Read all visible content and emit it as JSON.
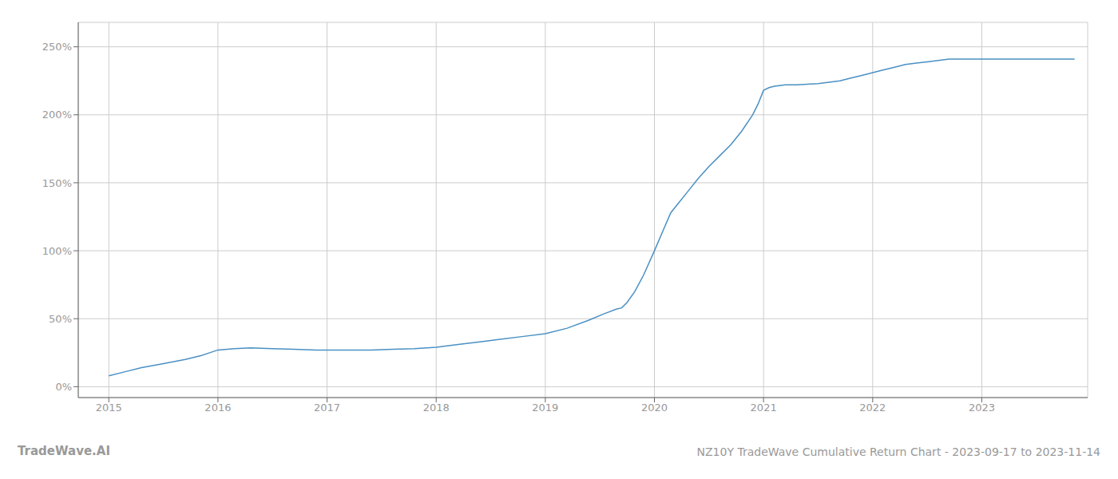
{
  "chart_data": {
    "type": "line",
    "title": "NZ10Y TradeWave Cumulative Return Chart - 2023-09-17 to 2023-11-14",
    "annotations": [
      "TradeWave.AI"
    ],
    "color": "#4a90c4",
    "grid": true,
    "x": [
      2015.0,
      2015.15,
      2015.3,
      2015.5,
      2015.7,
      2015.85,
      2016.0,
      2016.15,
      2016.3,
      2016.5,
      2016.7,
      2016.9,
      2017.0,
      2017.2,
      2017.4,
      2017.6,
      2017.8,
      2018.0,
      2018.2,
      2018.4,
      2018.6,
      2018.8,
      2019.0,
      2019.2,
      2019.4,
      2019.55,
      2019.65,
      2019.7,
      2019.75,
      2019.82,
      2019.9,
      2020.0,
      2020.08,
      2020.15,
      2020.22,
      2020.3,
      2020.4,
      2020.5,
      2020.6,
      2020.7,
      2020.8,
      2020.9,
      2020.95,
      2021.0,
      2021.05,
      2021.1,
      2021.2,
      2021.3,
      2021.4,
      2021.5,
      2021.6,
      2021.7,
      2021.8,
      2021.9,
      2022.0,
      2022.1,
      2022.2,
      2022.3,
      2022.4,
      2022.5,
      2022.6,
      2022.7,
      2022.75,
      2022.85,
      2023.0,
      2023.1,
      2023.2,
      2023.3,
      2023.4,
      2023.5,
      2023.6,
      2023.7,
      2023.85
    ],
    "values": [
      8,
      11,
      14,
      17,
      20,
      23,
      27,
      28,
      28.5,
      28,
      27.5,
      27,
      27,
      27,
      27,
      27.5,
      28,
      29,
      31,
      33,
      35,
      37,
      39,
      43,
      49,
      54,
      57,
      58,
      62,
      70,
      82,
      100,
      115,
      128,
      135,
      143,
      153,
      162,
      170,
      178,
      188,
      200,
      208,
      218,
      220,
      221,
      222,
      222,
      222.5,
      223,
      224,
      225,
      227,
      229,
      231,
      233,
      235,
      237,
      238,
      239,
      240,
      241,
      241,
      241,
      241,
      241,
      241,
      241,
      241,
      241,
      241,
      241,
      241
    ],
    "xlim": [
      2014.72,
      2023.97
    ],
    "xticks": [
      2015,
      2016,
      2017,
      2018,
      2019,
      2020,
      2021,
      2022,
      2023
    ],
    "ylim": [
      -8,
      268
    ],
    "yticks": [
      {
        "value": 0,
        "label": "0%"
      },
      {
        "value": 50,
        "label": "50%"
      },
      {
        "value": 100,
        "label": "100%"
      },
      {
        "value": 150,
        "label": "150%"
      },
      {
        "value": 200,
        "label": "200%"
      },
      {
        "value": 250,
        "label": "250%"
      }
    ]
  }
}
